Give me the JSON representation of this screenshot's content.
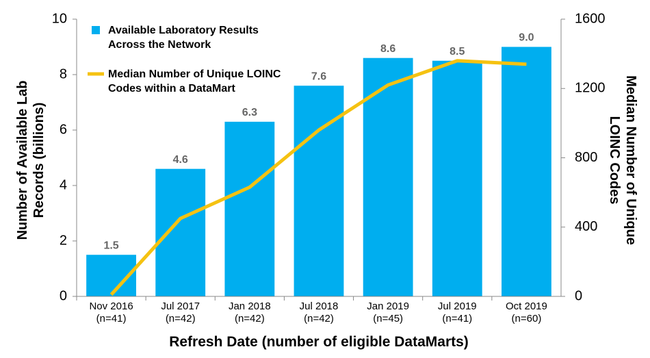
{
  "chart_data": {
    "type": "bar",
    "xlabel": "Refresh Date (number of eligible DataMarts)",
    "ylabel": "Number of Available Lab\nRecords (billions)",
    "y2label": "Median Number of Unique\nLOINC Codes",
    "categories": [
      "Nov 2016\n(n=41)",
      "Jul 2017\n(n=42)",
      "Jan 2018\n(n=42)",
      "Jul 2018\n(n=42)",
      "Jan 2019\n(n=45)",
      "Jul 2019\n(n=41)",
      "Oct 2019\n(n=60)"
    ],
    "series": [
      {
        "name": "Available Laboratory Results\nAcross the Network",
        "type": "bar",
        "color": "#00aeef",
        "values": [
          1.5,
          4.6,
          6.3,
          7.6,
          8.6,
          8.5,
          9.0
        ],
        "value_labels": [
          "1.5",
          "4.6",
          "6.3",
          "7.6",
          "8.6",
          "8.5",
          "9.0"
        ]
      },
      {
        "name": "Median Number of Unique LOINC\nCodes within a DataMart",
        "type": "line",
        "axis": "y2",
        "color": "#f5c211",
        "values": [
          10,
          450,
          630,
          960,
          1220,
          1360,
          1340
        ]
      }
    ],
    "ylim": [
      0,
      10
    ],
    "yticks": [
      0,
      2,
      4,
      6,
      8,
      10
    ],
    "y2lim": [
      0,
      1600
    ],
    "y2ticks": [
      0,
      400,
      800,
      1200,
      1600
    ],
    "legend": "upper left"
  }
}
